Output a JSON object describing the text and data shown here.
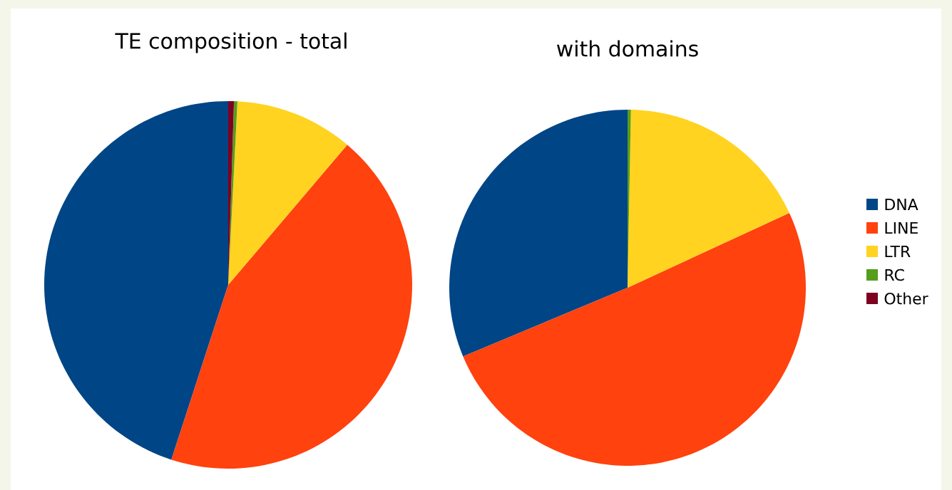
{
  "chart_data": [
    {
      "type": "pie",
      "title": "TE composition - total",
      "values": [
        45,
        43.8,
        10.4,
        0.3,
        0.5
      ],
      "colors": [
        "#004586",
        "#ff420e",
        "#ffd320",
        "#579d1c",
        "#7e0021"
      ]
    },
    {
      "type": "pie",
      "title": "with domains",
      "categories": [
        "DNA",
        "LINE",
        "LTR",
        "RC",
        "Other"
      ],
      "values": [
        31.3,
        50.6,
        17.8,
        0.3,
        0
      ],
      "colors": [
        "#004586",
        "#ff420e",
        "#ffd320",
        "#579d1c",
        "#7e0021"
      ],
      "legend": "right"
    }
  ]
}
